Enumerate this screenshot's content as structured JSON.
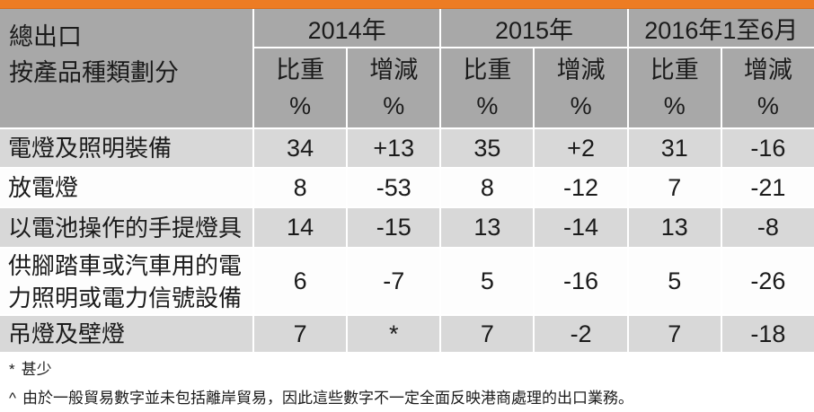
{
  "colors": {
    "accent_orange": "#ED7C23",
    "header_gray": "#A8A8A8",
    "row_gray": "#D8D8D8",
    "row_white": "#FDFDFD",
    "text": "#1b1b1b"
  },
  "chart_data": {
    "type": "table",
    "title": "總出口 按產品種類劃分",
    "corner": {
      "line1": "總出口",
      "line2": "按產品種類劃分"
    },
    "year_headers": [
      "2014年",
      "2015年",
      "2016年1至6月"
    ],
    "sub_headers": [
      {
        "label": "比重",
        "unit": "%"
      },
      {
        "label": "增減",
        "unit": "%"
      },
      {
        "label": "比重",
        "unit": "%"
      },
      {
        "label": "增減",
        "unit": "%"
      },
      {
        "label": "比重",
        "unit": "%"
      },
      {
        "label": "增減",
        "unit": "%"
      }
    ],
    "rows": [
      {
        "category": "電燈及照明裝備",
        "values": [
          "34",
          "+13",
          "35",
          "+2",
          "31",
          "-16"
        ]
      },
      {
        "category": "放電燈",
        "values": [
          "8",
          "-53",
          "8",
          "-12",
          "7",
          "-21"
        ]
      },
      {
        "category": "以電池操作的手提燈具",
        "values": [
          "14",
          "-15",
          "13",
          "-14",
          "13",
          "-8"
        ]
      },
      {
        "category": "供腳踏車或汽車用的電力照明或電力信號設備",
        "values": [
          "6",
          "-7",
          "5",
          "-16",
          "5",
          "-26"
        ]
      },
      {
        "category": "吊燈及壁燈",
        "values": [
          "7",
          "*",
          "7",
          "-2",
          "7",
          "-18"
        ]
      }
    ],
    "footnotes": [
      {
        "marker": "*",
        "text": "甚少"
      },
      {
        "marker": "^",
        "text": "由於一般貿易數字並未包括離岸貿易，因此這些數字不一定全面反映港商處理的出口業務。"
      }
    ]
  }
}
